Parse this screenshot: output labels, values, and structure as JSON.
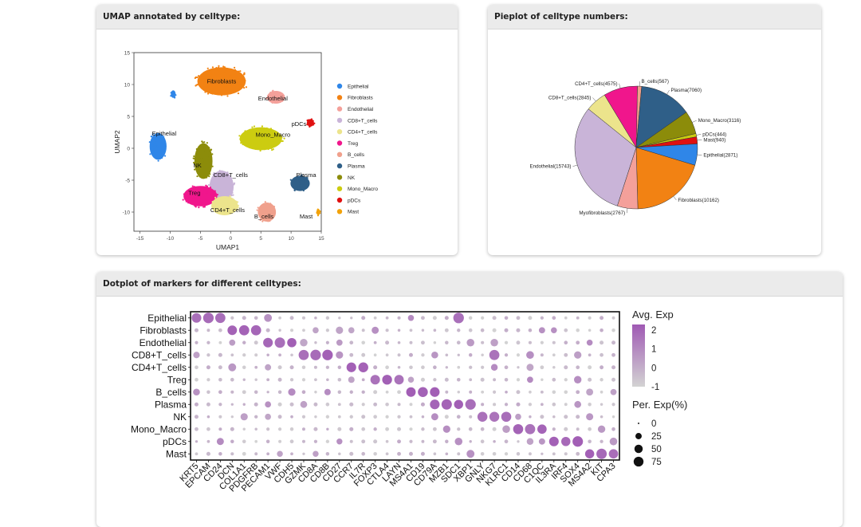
{
  "panels": {
    "umap_title": "UMAP annotated by celltype:",
    "pie_title": "Pieplot of celltype numbers:",
    "dot_title": "Dotplot of markers for different celltypes:"
  },
  "chart_data": [
    {
      "type": "scatter",
      "title": "UMAP annotated by celltype",
      "xlabel": "UMAP1",
      "ylabel": "UMAP2",
      "xlim": [
        -16,
        15
      ],
      "ylim": [
        -13,
        15
      ],
      "xticks": [
        -15,
        -10,
        -5,
        0,
        5,
        10,
        15
      ],
      "yticks": [
        15,
        10,
        5,
        0,
        -5,
        -10
      ],
      "legend": [
        {
          "name": "Epithelial",
          "color": "#2f86e8"
        },
        {
          "name": "Fibroblasts",
          "color": "#f28213"
        },
        {
          "name": "Endothelial",
          "color": "#f4a09a"
        },
        {
          "name": "CD8+T_cells",
          "color": "#c9b4d8"
        },
        {
          "name": "CD4+T_cells",
          "color": "#ece48c"
        },
        {
          "name": "Treg",
          "color": "#f0168c"
        },
        {
          "name": "B_cells",
          "color": "#f0a08c"
        },
        {
          "name": "Plasma",
          "color": "#2f5f88"
        },
        {
          "name": "NK",
          "color": "#8c8c0a"
        },
        {
          "name": "Mono_Macro",
          "color": "#cccc10"
        },
        {
          "name": "pDCs",
          "color": "#e01010"
        },
        {
          "name": "Mast",
          "color": "#f2a20a"
        }
      ],
      "clusters": [
        {
          "name": "Fibroblasts",
          "cx": -1.5,
          "cy": 10.5,
          "rx": 4.0,
          "ry": 2.2,
          "label": "Fibroblasts",
          "lx": -1.5,
          "ly": 10.2
        },
        {
          "name": "Epithelial",
          "cx": -12.0,
          "cy": 0.3,
          "rx": 1.4,
          "ry": 2.1,
          "label": "Epithelial",
          "lx": -11.0,
          "ly": 2.0
        },
        {
          "name": "Epithelial",
          "cx": -9.5,
          "cy": 8.5,
          "rx": 0.4,
          "ry": 0.6,
          "label": "",
          "lx": 0,
          "ly": 0
        },
        {
          "name": "Endothelial",
          "cx": 7.5,
          "cy": 8.0,
          "rx": 1.5,
          "ry": 1.0,
          "label": "Endothelial",
          "lx": 7.0,
          "ly": 7.5
        },
        {
          "name": "Mono_Macro",
          "cx": 5.0,
          "cy": 1.5,
          "rx": 3.5,
          "ry": 1.8,
          "label": "Mono_Macro",
          "lx": 7.0,
          "ly": 1.8
        },
        {
          "name": "pDCs",
          "cx": 13.2,
          "cy": 4.0,
          "rx": 0.6,
          "ry": 0.6,
          "label": "pDCs",
          "lx": 11.3,
          "ly": 3.5
        },
        {
          "name": "Plasma",
          "cx": 11.5,
          "cy": -5.5,
          "rx": 1.6,
          "ry": 1.2,
          "label": "Plasma",
          "lx": 12.5,
          "ly": -4.5
        },
        {
          "name": "B_cells",
          "cx": 6.0,
          "cy": -10.0,
          "rx": 1.5,
          "ry": 1.5,
          "label": "B_cells",
          "lx": 5.5,
          "ly": -11.0
        },
        {
          "name": "Mast",
          "cx": 14.5,
          "cy": -10.0,
          "rx": 0.3,
          "ry": 0.5,
          "label": "Mast",
          "lx": 12.5,
          "ly": -11.0
        },
        {
          "name": "NK",
          "cx": -4.5,
          "cy": -2.0,
          "rx": 1.5,
          "ry": 2.8,
          "label": "NK",
          "lx": -5.5,
          "ly": -3.0
        },
        {
          "name": "CD8+T_cells",
          "cx": -1.5,
          "cy": -6.0,
          "rx": 2.0,
          "ry": 2.5,
          "label": "CD8+T_cells",
          "lx": 0.0,
          "ly": -4.5
        },
        {
          "name": "Treg",
          "cx": -5.0,
          "cy": -7.5,
          "rx": 2.8,
          "ry": 1.6,
          "label": "Treg",
          "lx": -6.0,
          "ly": -7.3
        },
        {
          "name": "CD4+T_cells",
          "cx": -1.0,
          "cy": -9.0,
          "rx": 2.2,
          "ry": 1.5,
          "label": "CD4+T_cells",
          "lx": -0.5,
          "ly": -10.0
        }
      ]
    },
    {
      "type": "pie",
      "title": "Pieplot of celltype numbers",
      "slices": [
        {
          "label": "B_cells(567)",
          "value": 567,
          "color": "#f0a08c"
        },
        {
          "label": "Plasma(7060)",
          "value": 7060,
          "color": "#2f5f88"
        },
        {
          "label": "Mono_Macro(3116)",
          "value": 3116,
          "color": "#8c8c0a"
        },
        {
          "label": "pDCs(444)",
          "value": 444,
          "color": "#cccc10"
        },
        {
          "label": "Mast(940)",
          "value": 940,
          "color": "#e01010"
        },
        {
          "label": "Epithelial(2871)",
          "value": 2871,
          "color": "#2f86e8"
        },
        {
          "label": "Fibroblasts(10162)",
          "value": 10162,
          "color": "#f28213"
        },
        {
          "label": "Myofibroblasts(2767)",
          "value": 2767,
          "color": "#f4a09a"
        },
        {
          "label": "Endothelial(15743)",
          "value": 15743,
          "color": "#c9b4d8"
        },
        {
          "label": "CD8+T_cells(2845)",
          "value": 2845,
          "color": "#ece48c"
        },
        {
          "label": "CD4+T_cells(4575)",
          "value": 4575,
          "color": "#f0168c"
        }
      ]
    },
    {
      "type": "dotplot",
      "title": "Dotplot of markers for different celltypes",
      "celltypes": [
        "Epithelial",
        "Fibroblasts",
        "Endothelial",
        "CD8+T_cells",
        "CD4+T_cells",
        "Treg",
        "B_cells",
        "Plasma",
        "NK",
        "Mono_Macro",
        "pDCs",
        "Mast"
      ],
      "genes": [
        "KRT5",
        "EPCAM",
        "CD24",
        "DCN",
        "COL1A1",
        "PDGFRB",
        "PECAM1",
        "VWF",
        "CDH5",
        "GZMK",
        "CD8A",
        "CD8B",
        "CD27",
        "CCR7",
        "IL7R",
        "FOXP3",
        "CTLA4",
        "LAYN",
        "MS4A1",
        "CD19",
        "CD79A",
        "MZB1",
        "SDC1",
        "XBP1",
        "GNLY",
        "NKG7",
        "KLRC1",
        "CD14",
        "CD68",
        "C1QC",
        "IL3RA",
        "IRF4",
        "SOX4",
        "MS4A2",
        "KIT",
        "CPA3"
      ],
      "marker_gene_indices": [
        [
          0,
          1,
          2,
          22
        ],
        [
          3,
          4,
          5
        ],
        [
          6,
          7,
          8
        ],
        [
          9,
          10,
          11,
          25
        ],
        [
          14,
          13
        ],
        [
          15,
          16,
          17
        ],
        [
          18,
          19,
          20
        ],
        [
          20,
          21,
          22,
          23
        ],
        [
          24,
          25,
          26
        ],
        [
          27,
          28,
          29
        ],
        [
          30,
          31,
          32
        ],
        [
          33,
          34,
          35
        ]
      ],
      "size_legend": {
        "title": "Per. Exp(%)",
        "labels": [
          "0",
          "25",
          "50",
          "75"
        ],
        "values": [
          0,
          25,
          50,
          75
        ]
      },
      "color_legend": {
        "title": "Avg. Exp",
        "labels": [
          "2",
          "1",
          "0",
          "-1"
        ],
        "range": [
          -1,
          2.3
        ],
        "low_color": "#d3d3d3",
        "high_color": "#a05ab4"
      }
    }
  ]
}
